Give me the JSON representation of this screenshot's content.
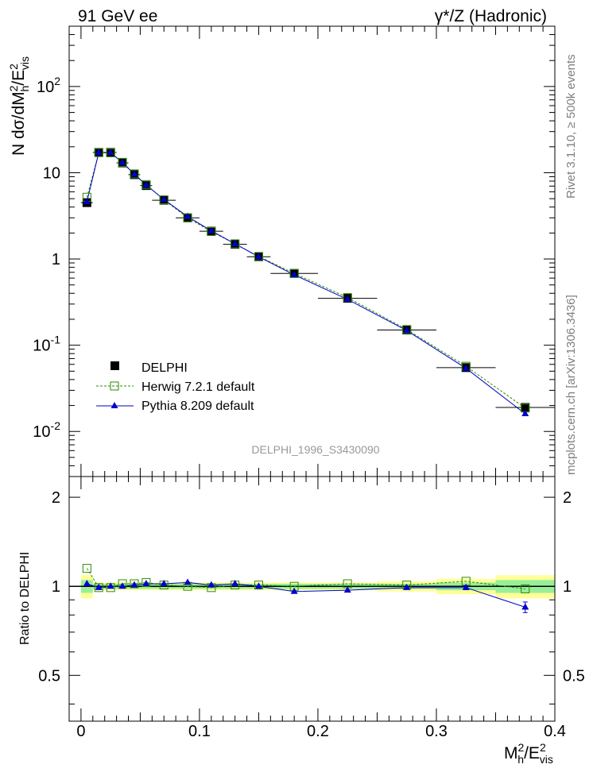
{
  "header": {
    "left": "91 GeV ee",
    "right": "γ*/Z (Hadronic)"
  },
  "side_labels": {
    "rivet": "Rivet 3.1.10, ≥ 500k events",
    "mcplots": "mcplots.cern.ch [arXiv:1306.3436]"
  },
  "watermark": "DELPHI_1996_S3430090",
  "main_ylabel": {
    "prefix": "N dσ/dM",
    "sub_h": "h",
    "sup2": "2",
    "mid": "/E",
    "sup2b": "2",
    "sub_vis": "vis"
  },
  "ratio_ylabel": "Ratio to DELPHI",
  "xlabel": {
    "base": "M",
    "sub_h": "h",
    "sup2": "2",
    "mid": "/E",
    "sup2b": "2",
    "sub_vis": "vis"
  },
  "legend": {
    "data": "DELPHI",
    "herwig": "Herwig 7.2.1 default",
    "pythia": "Pythia 8.209 default"
  },
  "colors": {
    "data": "#000000",
    "herwig": "#2e8b00",
    "pythia": "#0000cc",
    "band_yellow": "#ffff99",
    "band_green": "#99ee99"
  },
  "chart_data": {
    "type": "scatter",
    "xlim": [
      -0.01,
      0.4
    ],
    "ylim_main": [
      0.003,
      500
    ],
    "ylim_ratio": [
      0.35,
      2.35
    ],
    "x_ticks": [
      "0",
      "0.1",
      "0.2",
      "0.3",
      "0.4"
    ],
    "y_ticks_main": [
      {
        "base": "10",
        "exp": "-2"
      },
      {
        "base": "10",
        "exp": "-1"
      },
      {
        "base": "1",
        "exp": ""
      },
      {
        "base": "10",
        "exp": ""
      },
      {
        "base": "10",
        "exp": "2"
      }
    ],
    "y_ticks_ratio_left": [
      "0.5",
      "1",
      "2"
    ],
    "y_ticks_ratio_right": [
      "0.5",
      "1",
      "2"
    ],
    "bins": [
      [
        0.0,
        0.01
      ],
      [
        0.01,
        0.02
      ],
      [
        0.02,
        0.03
      ],
      [
        0.03,
        0.04
      ],
      [
        0.04,
        0.05
      ],
      [
        0.05,
        0.06
      ],
      [
        0.06,
        0.08
      ],
      [
        0.08,
        0.1
      ],
      [
        0.1,
        0.12
      ],
      [
        0.12,
        0.14
      ],
      [
        0.14,
        0.16
      ],
      [
        0.16,
        0.2
      ],
      [
        0.2,
        0.25
      ],
      [
        0.25,
        0.3
      ],
      [
        0.3,
        0.35
      ],
      [
        0.35,
        0.4
      ]
    ],
    "x": [
      0.005,
      0.015,
      0.025,
      0.035,
      0.045,
      0.055,
      0.07,
      0.09,
      0.11,
      0.13,
      0.15,
      0.18,
      0.225,
      0.275,
      0.325,
      0.375
    ],
    "series": [
      {
        "name": "DELPHI",
        "values": [
          4.5,
          17.2,
          17.2,
          13.0,
          9.5,
          7.1,
          4.8,
          3.0,
          2.1,
          1.48,
          1.06,
          0.68,
          0.35,
          0.15,
          0.055,
          0.019
        ]
      },
      {
        "name": "Herwig 7.2.1 default",
        "values": [
          5.2,
          17.1,
          17.0,
          13.2,
          9.7,
          7.3,
          4.85,
          3.0,
          2.08,
          1.5,
          1.07,
          0.68,
          0.357,
          0.152,
          0.057,
          0.0187
        ]
      },
      {
        "name": "Pythia 8.209 default",
        "values": [
          4.6,
          17.1,
          17.1,
          13.1,
          9.6,
          7.2,
          4.9,
          3.1,
          2.12,
          1.5,
          1.06,
          0.655,
          0.34,
          0.148,
          0.054,
          0.016
        ]
      }
    ],
    "ratio": {
      "herwig": [
        1.15,
        0.99,
        0.99,
        1.02,
        1.02,
        1.03,
        1.01,
        1.0,
        0.99,
        1.01,
        1.01,
        1.0,
        1.02,
        1.01,
        1.04,
        0.98
      ],
      "pythia": [
        1.02,
        0.99,
        1.0,
        1.0,
        1.01,
        1.02,
        1.02,
        1.03,
        1.01,
        1.02,
        1.0,
        0.96,
        0.97,
        0.99,
        0.99,
        0.85
      ],
      "pythia_err": [
        0.01,
        0.005,
        0.005,
        0.005,
        0.005,
        0.005,
        0.005,
        0.005,
        0.005,
        0.005,
        0.005,
        0.008,
        0.008,
        0.01,
        0.015,
        0.035
      ],
      "band_stat": [
        0.05,
        0.02,
        0.02,
        0.02,
        0.02,
        0.02,
        0.02,
        0.02,
        0.02,
        0.02,
        0.02,
        0.02,
        0.02,
        0.02,
        0.03,
        0.05
      ],
      "band_total": [
        0.09,
        0.03,
        0.03,
        0.03,
        0.03,
        0.03,
        0.03,
        0.03,
        0.03,
        0.03,
        0.03,
        0.03,
        0.03,
        0.04,
        0.06,
        0.09
      ]
    }
  }
}
